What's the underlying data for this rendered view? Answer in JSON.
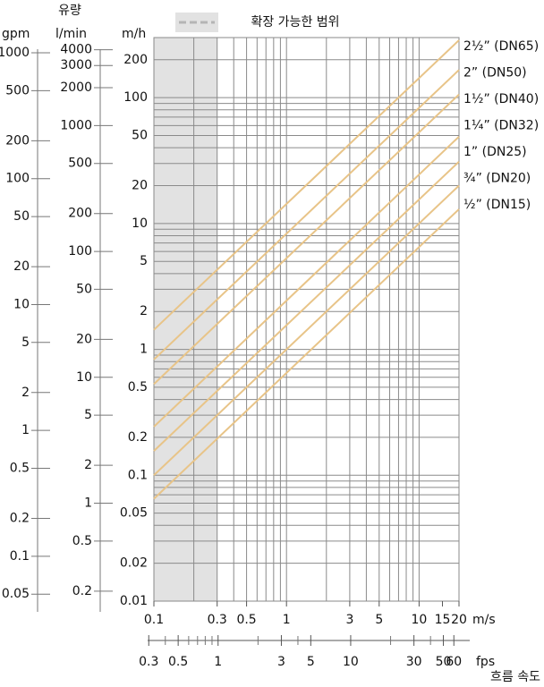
{
  "chart_data": {
    "type": "line",
    "title": "유량",
    "legend_label": "확장 가능한 범위",
    "highlight_range": [
      0.1,
      0.3
    ],
    "x_label": "흐름 속도",
    "x_unit": "m/s",
    "xlim": [
      0.1,
      20
    ],
    "xticks": [
      0.1,
      0.3,
      0.5,
      1,
      3,
      5,
      10,
      15,
      20
    ],
    "x_gridlines": [
      0.1,
      0.2,
      0.3,
      0.4,
      0.5,
      0.6,
      0.7,
      0.8,
      0.9,
      1,
      2,
      3,
      4,
      5,
      6,
      7,
      8,
      9,
      10,
      20
    ],
    "x2_unit": "fps",
    "x2lim": [
      0.328,
      65.6
    ],
    "x2ticks": [
      0.3,
      0.5,
      1,
      3,
      5,
      10,
      30,
      50,
      60
    ],
    "x2_minor": [
      0.4,
      0.6,
      0.7,
      0.8,
      0.9,
      2,
      4,
      20,
      40
    ],
    "y_label": "m/h",
    "ylim": [
      0.01,
      300
    ],
    "yticks": [
      0.01,
      0.02,
      0.05,
      0.1,
      0.2,
      0.5,
      1,
      2,
      5,
      10,
      20,
      50,
      100,
      200
    ],
    "y_gridlines": [
      0.01,
      0.02,
      0.03,
      0.04,
      0.05,
      0.06,
      0.07,
      0.08,
      0.09,
      0.1,
      0.2,
      0.3,
      0.4,
      0.5,
      0.6,
      0.7,
      0.8,
      0.9,
      1,
      2,
      3,
      4,
      5,
      6,
      7,
      8,
      9,
      10,
      20,
      30,
      40,
      50,
      60,
      70,
      80,
      90,
      100,
      200,
      300
    ],
    "gpm_label": "gpm",
    "gpm_lim": [
      0.04403,
      1320.9
    ],
    "gpm_ticks": [
      0.05,
      0.1,
      0.2,
      0.5,
      1,
      2,
      5,
      10,
      20,
      50,
      100,
      200,
      500,
      1000
    ],
    "lmin_label": "l/min",
    "lmin_lim": [
      0.1667,
      5000
    ],
    "lmin_ticks": [
      0.2,
      0.5,
      1,
      2,
      5,
      10,
      20,
      50,
      100,
      200,
      500,
      1000,
      2000,
      3000,
      4000
    ],
    "log_scale": true,
    "grid": true,
    "series": [
      {
        "name": "½” (DN15)",
        "color": "#e8c488",
        "x": [
          0.1,
          20
        ],
        "values": [
          0.065,
          13
        ]
      },
      {
        "name": "¾” (DN20)",
        "color": "#e8c488",
        "x": [
          0.1,
          20
        ],
        "values": [
          0.1,
          20
        ]
      },
      {
        "name": "1” (DN25)",
        "color": "#e8c488",
        "x": [
          0.1,
          20
        ],
        "values": [
          0.156,
          31
        ]
      },
      {
        "name": "1¼” (DN32)",
        "color": "#e8c488",
        "x": [
          0.1,
          20
        ],
        "values": [
          0.243,
          49
        ]
      },
      {
        "name": "1½” (DN40)",
        "color": "#e8c488",
        "x": [
          0.1,
          20
        ],
        "values": [
          0.53,
          106
        ]
      },
      {
        "name": "2” (DN50)",
        "color": "#e8c488",
        "x": [
          0.1,
          20
        ],
        "values": [
          0.83,
          166
        ]
      },
      {
        "name": "2½” (DN65)",
        "color": "#e8c488",
        "x": [
          0.1,
          20
        ],
        "values": [
          1.43,
          286
        ]
      }
    ]
  }
}
